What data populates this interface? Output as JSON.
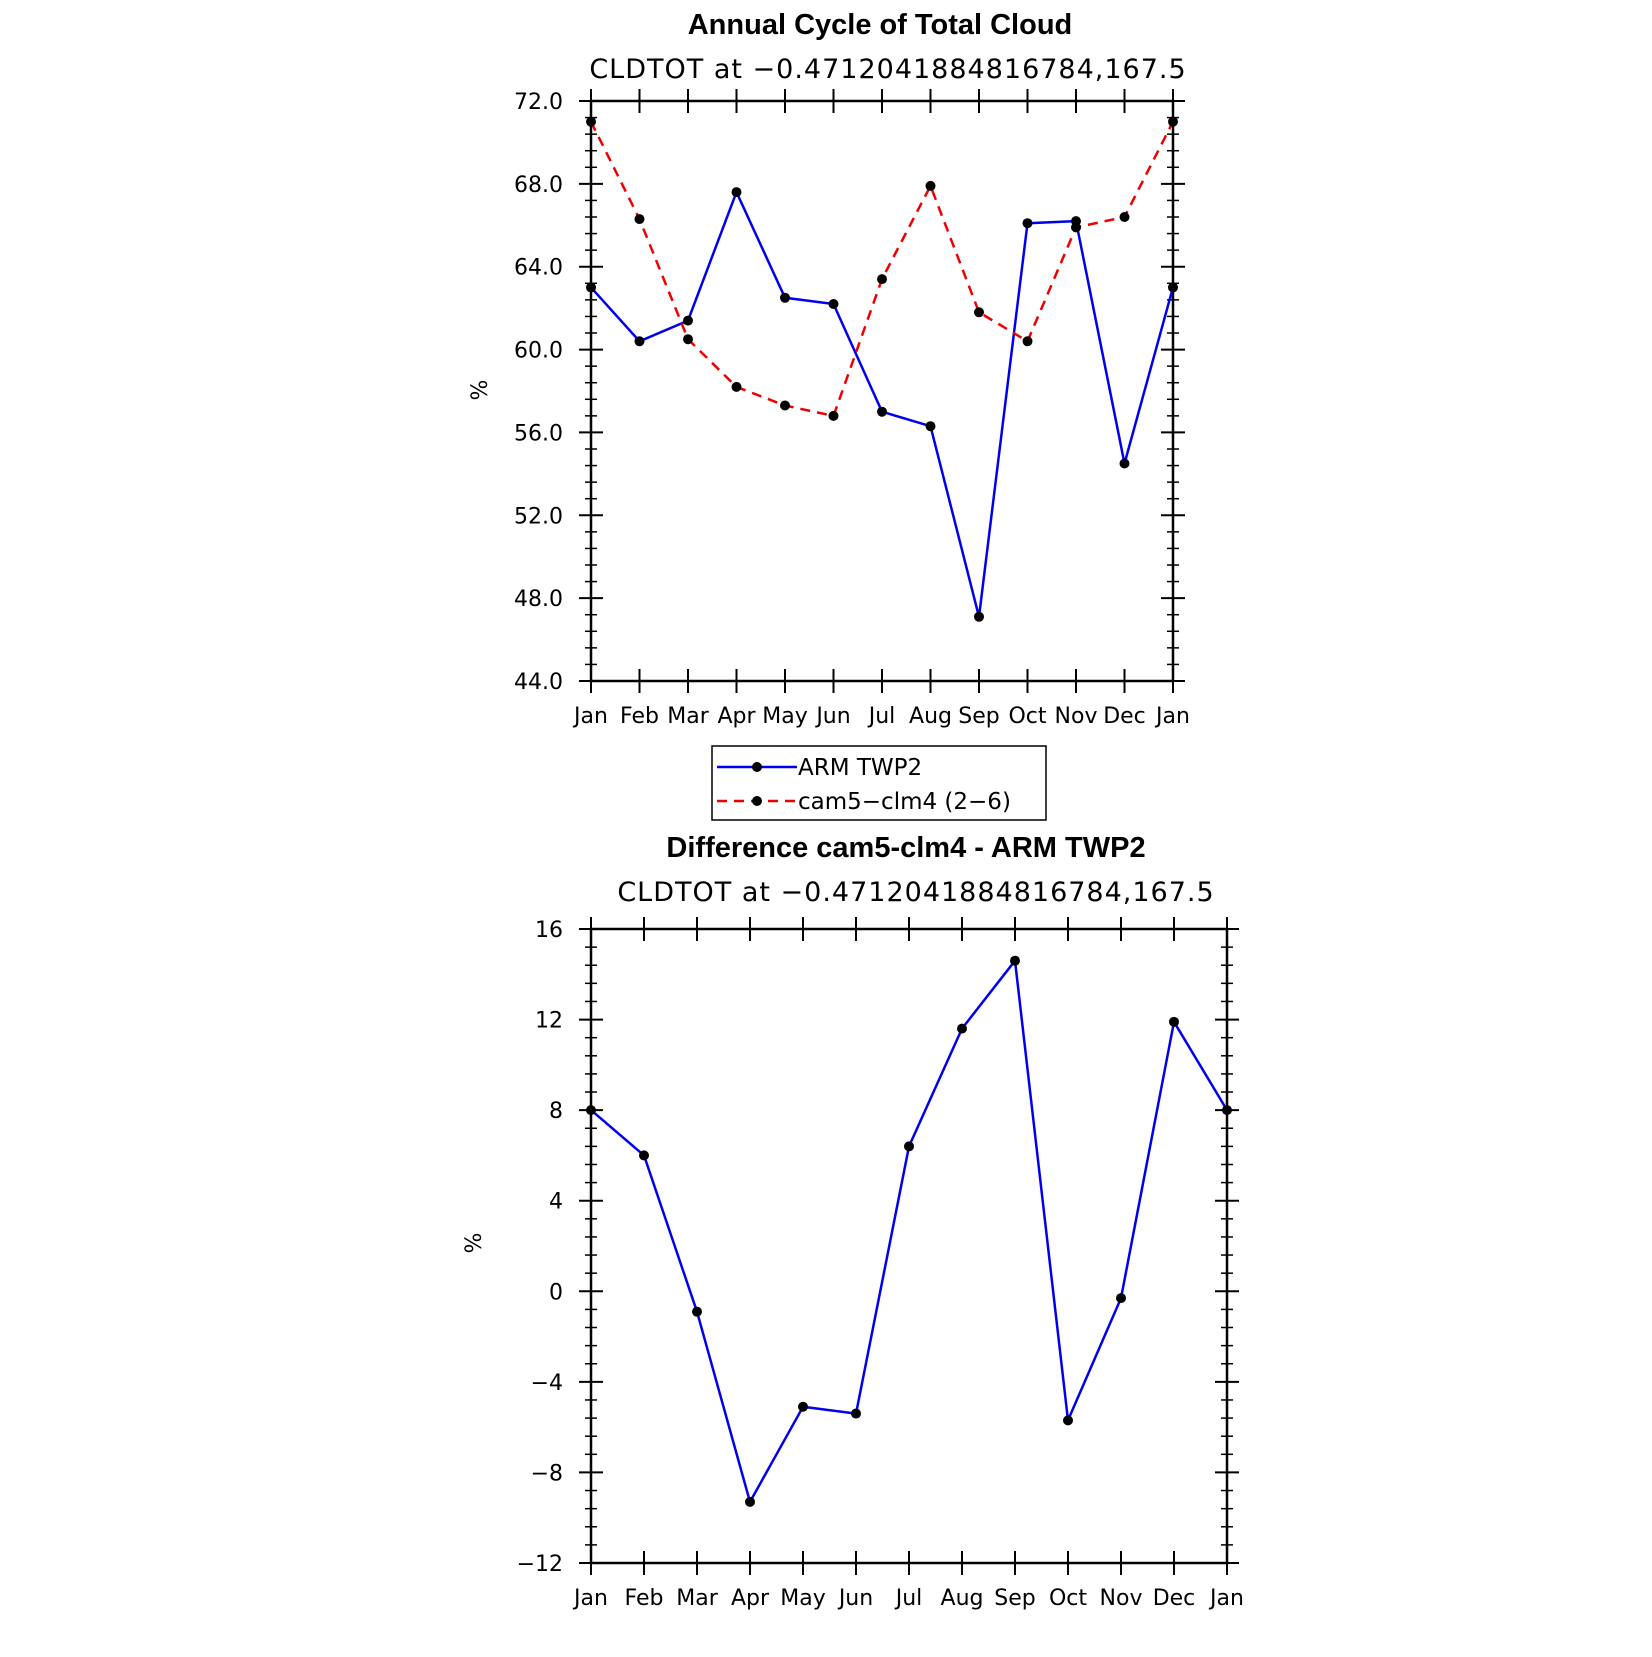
{
  "chart_data": [
    {
      "type": "line",
      "title": "Annual Cycle of Total Cloud",
      "subtitle": "CLDTOT at −0.4712041884816784,167.5",
      "xlabel": "",
      "ylabel": "%",
      "categories": [
        "Jan",
        "Feb",
        "Mar",
        "Apr",
        "May",
        "Jun",
        "Jul",
        "Aug",
        "Sep",
        "Oct",
        "Nov",
        "Dec",
        "Jan"
      ],
      "ylim": [
        44,
        72
      ],
      "yticks": [
        "44.0",
        "48.0",
        "52.0",
        "56.0",
        "60.0",
        "64.0",
        "68.0",
        "72.0"
      ],
      "series": [
        {
          "name": "ARM TWP2",
          "color": "#0000ee",
          "dash": "solid",
          "values": [
            63.0,
            60.4,
            61.4,
            67.6,
            62.5,
            62.2,
            57.0,
            56.3,
            47.1,
            66.1,
            66.2,
            54.5,
            63.0
          ]
        },
        {
          "name": "cam5−clm4 (2−6)",
          "color": "#ee0000",
          "dash": "dashed",
          "values": [
            71.0,
            66.3,
            60.5,
            58.2,
            57.3,
            56.8,
            63.4,
            67.9,
            61.8,
            60.4,
            65.9,
            66.4,
            71.0
          ]
        }
      ],
      "legend": "below"
    },
    {
      "type": "line",
      "title": "Difference cam5-clm4 - ARM TWP2",
      "subtitle": "CLDTOT at −0.4712041884816784,167.5",
      "xlabel": "",
      "ylabel": "%",
      "categories": [
        "Jan",
        "Feb",
        "Mar",
        "Apr",
        "May",
        "Jun",
        "Jul",
        "Aug",
        "Sep",
        "Oct",
        "Nov",
        "Dec",
        "Jan"
      ],
      "ylim": [
        -12,
        16
      ],
      "yticks": [
        "−12",
        "−8",
        "−4",
        "0",
        "4",
        "8",
        "12",
        "16"
      ],
      "series": [
        {
          "color": "#0000ee",
          "dash": "solid",
          "values": [
            8.0,
            6.0,
            -0.9,
            -9.3,
            -5.1,
            -5.4,
            6.4,
            11.6,
            14.6,
            -5.7,
            -0.3,
            11.9,
            8.0
          ]
        }
      ]
    }
  ]
}
